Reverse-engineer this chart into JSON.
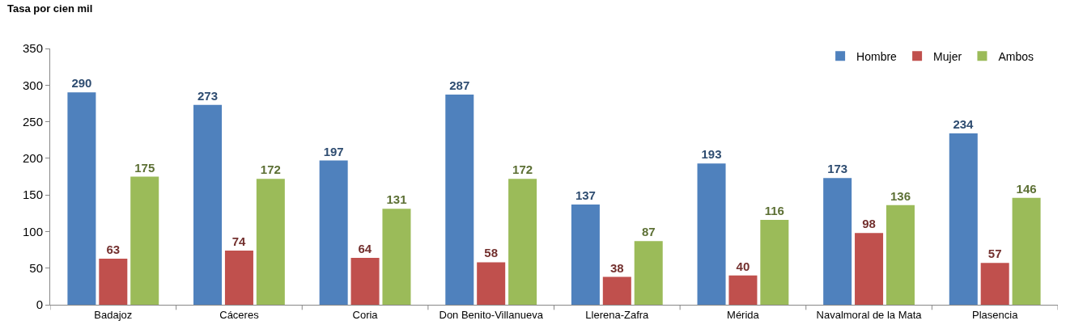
{
  "chart_data": {
    "type": "bar",
    "ylabel": "Tasa por cien mil",
    "categories": [
      "Badajoz",
      "Cáceres",
      "Coria",
      "Don Benito-Villanueva",
      "Llerena-Zafra",
      "Mérida",
      "Navalmoral de la Mata",
      "Plasencia"
    ],
    "series": [
      {
        "name": "Hombre",
        "color": "#4f81bd",
        "values": [
          290,
          273,
          197,
          287,
          137,
          193,
          173,
          234
        ]
      },
      {
        "name": "Mujer",
        "color": "#c0504d",
        "values": [
          63,
          74,
          64,
          58,
          38,
          40,
          98,
          57
        ]
      },
      {
        "name": "Ambos",
        "color": "#9bbb59",
        "values": [
          175,
          172,
          131,
          172,
          87,
          116,
          136,
          146
        ]
      }
    ],
    "ylim": [
      0,
      350
    ],
    "yticks": [
      0,
      50,
      100,
      150,
      200,
      250,
      300,
      350
    ],
    "grid": false,
    "legend": "top right",
    "data_labels": true
  }
}
